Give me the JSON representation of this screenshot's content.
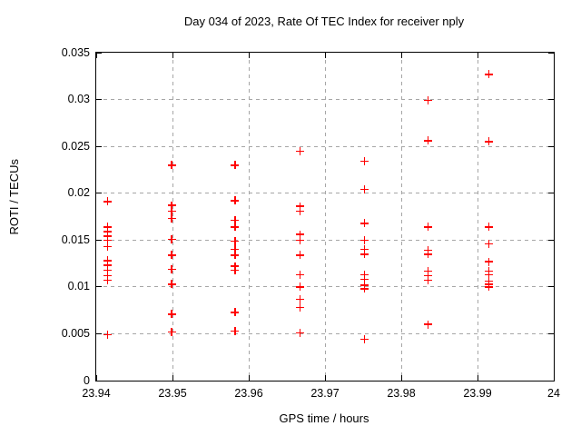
{
  "colors": {
    "background": "#ffffff",
    "marker": "#ff0000",
    "grid": "#a6a6a6",
    "axis": "#000000",
    "text": "#000000"
  },
  "chart_data": {
    "type": "scatter",
    "title": "Day 034 of 2023, Rate Of TEC Index for receiver nply",
    "xlabel": "GPS time / hours",
    "ylabel": "ROTI / TECUs",
    "xlim": [
      23.94,
      24
    ],
    "ylim": [
      0,
      0.035
    ],
    "grid": true,
    "legend": "none",
    "marker": "plus",
    "xticks": {
      "values": [
        23.94,
        23.95,
        23.96,
        23.97,
        23.98,
        23.99,
        24
      ],
      "labels": [
        "23.94",
        "23.95",
        "23.96",
        "23.97",
        "23.98",
        "23.99",
        "24"
      ]
    },
    "yticks": {
      "values": [
        0,
        0.005,
        0.01,
        0.015,
        0.02,
        0.025,
        0.03,
        0.035
      ],
      "labels": [
        "0",
        "0.005",
        "0.01",
        "0.015",
        "0.02",
        "0.025",
        "0.03",
        "0.035"
      ]
    },
    "series": [
      {
        "name": "ROTI",
        "points": [
          [
            23.9415,
            0.0191
          ],
          [
            23.9415,
            0.0164
          ],
          [
            23.9415,
            0.0159
          ],
          [
            23.9415,
            0.0154
          ],
          [
            23.9415,
            0.015
          ],
          [
            23.9415,
            0.0143
          ],
          [
            23.9415,
            0.0128
          ],
          [
            23.9415,
            0.0123
          ],
          [
            23.9415,
            0.0118
          ],
          [
            23.9415,
            0.0112
          ],
          [
            23.9415,
            0.0107
          ],
          [
            23.9415,
            0.0049
          ],
          [
            23.9499,
            0.023
          ],
          [
            23.9499,
            0.0187
          ],
          [
            23.9499,
            0.0181
          ],
          [
            23.9499,
            0.0173
          ],
          [
            23.9499,
            0.0151
          ],
          [
            23.9499,
            0.0134
          ],
          [
            23.9499,
            0.0119
          ],
          [
            23.9499,
            0.0103
          ],
          [
            23.9499,
            0.0071
          ],
          [
            23.9499,
            0.0052
          ],
          [
            23.9582,
            0.023
          ],
          [
            23.9582,
            0.0192
          ],
          [
            23.9582,
            0.0171
          ],
          [
            23.9582,
            0.0164
          ],
          [
            23.9582,
            0.0149
          ],
          [
            23.9582,
            0.014
          ],
          [
            23.9582,
            0.0134
          ],
          [
            23.9582,
            0.0122
          ],
          [
            23.9582,
            0.0118
          ],
          [
            23.9582,
            0.0073
          ],
          [
            23.9582,
            0.0053
          ],
          [
            23.9667,
            0.0245
          ],
          [
            23.9667,
            0.0186
          ],
          [
            23.9667,
            0.0181
          ],
          [
            23.9667,
            0.0156
          ],
          [
            23.9667,
            0.015
          ],
          [
            23.9667,
            0.0134
          ],
          [
            23.9667,
            0.0113
          ],
          [
            23.9667,
            0.01
          ],
          [
            23.9667,
            0.0087
          ],
          [
            23.9667,
            0.0078
          ],
          [
            23.9667,
            0.0051
          ],
          [
            23.9752,
            0.0234
          ],
          [
            23.9752,
            0.0204
          ],
          [
            23.9752,
            0.0168
          ],
          [
            23.9752,
            0.015
          ],
          [
            23.9752,
            0.014
          ],
          [
            23.9752,
            0.0135
          ],
          [
            23.9752,
            0.0113
          ],
          [
            23.9752,
            0.0108
          ],
          [
            23.9752,
            0.0102
          ],
          [
            23.9752,
            0.0098
          ],
          [
            23.9752,
            0.0044
          ],
          [
            23.9835,
            0.0299
          ],
          [
            23.9835,
            0.0256
          ],
          [
            23.9835,
            0.0164
          ],
          [
            23.9835,
            0.0139
          ],
          [
            23.9835,
            0.0135
          ],
          [
            23.9835,
            0.0117
          ],
          [
            23.9835,
            0.0112
          ],
          [
            23.9835,
            0.0107
          ],
          [
            23.9835,
            0.006
          ],
          [
            23.9915,
            0.0327
          ],
          [
            23.9915,
            0.0255
          ],
          [
            23.9915,
            0.0164
          ],
          [
            23.9915,
            0.0146
          ],
          [
            23.9915,
            0.0127
          ],
          [
            23.9915,
            0.0117
          ],
          [
            23.9915,
            0.0113
          ],
          [
            23.9915,
            0.0106
          ],
          [
            23.9915,
            0.0103
          ],
          [
            23.9915,
            0.01
          ]
        ]
      }
    ]
  }
}
